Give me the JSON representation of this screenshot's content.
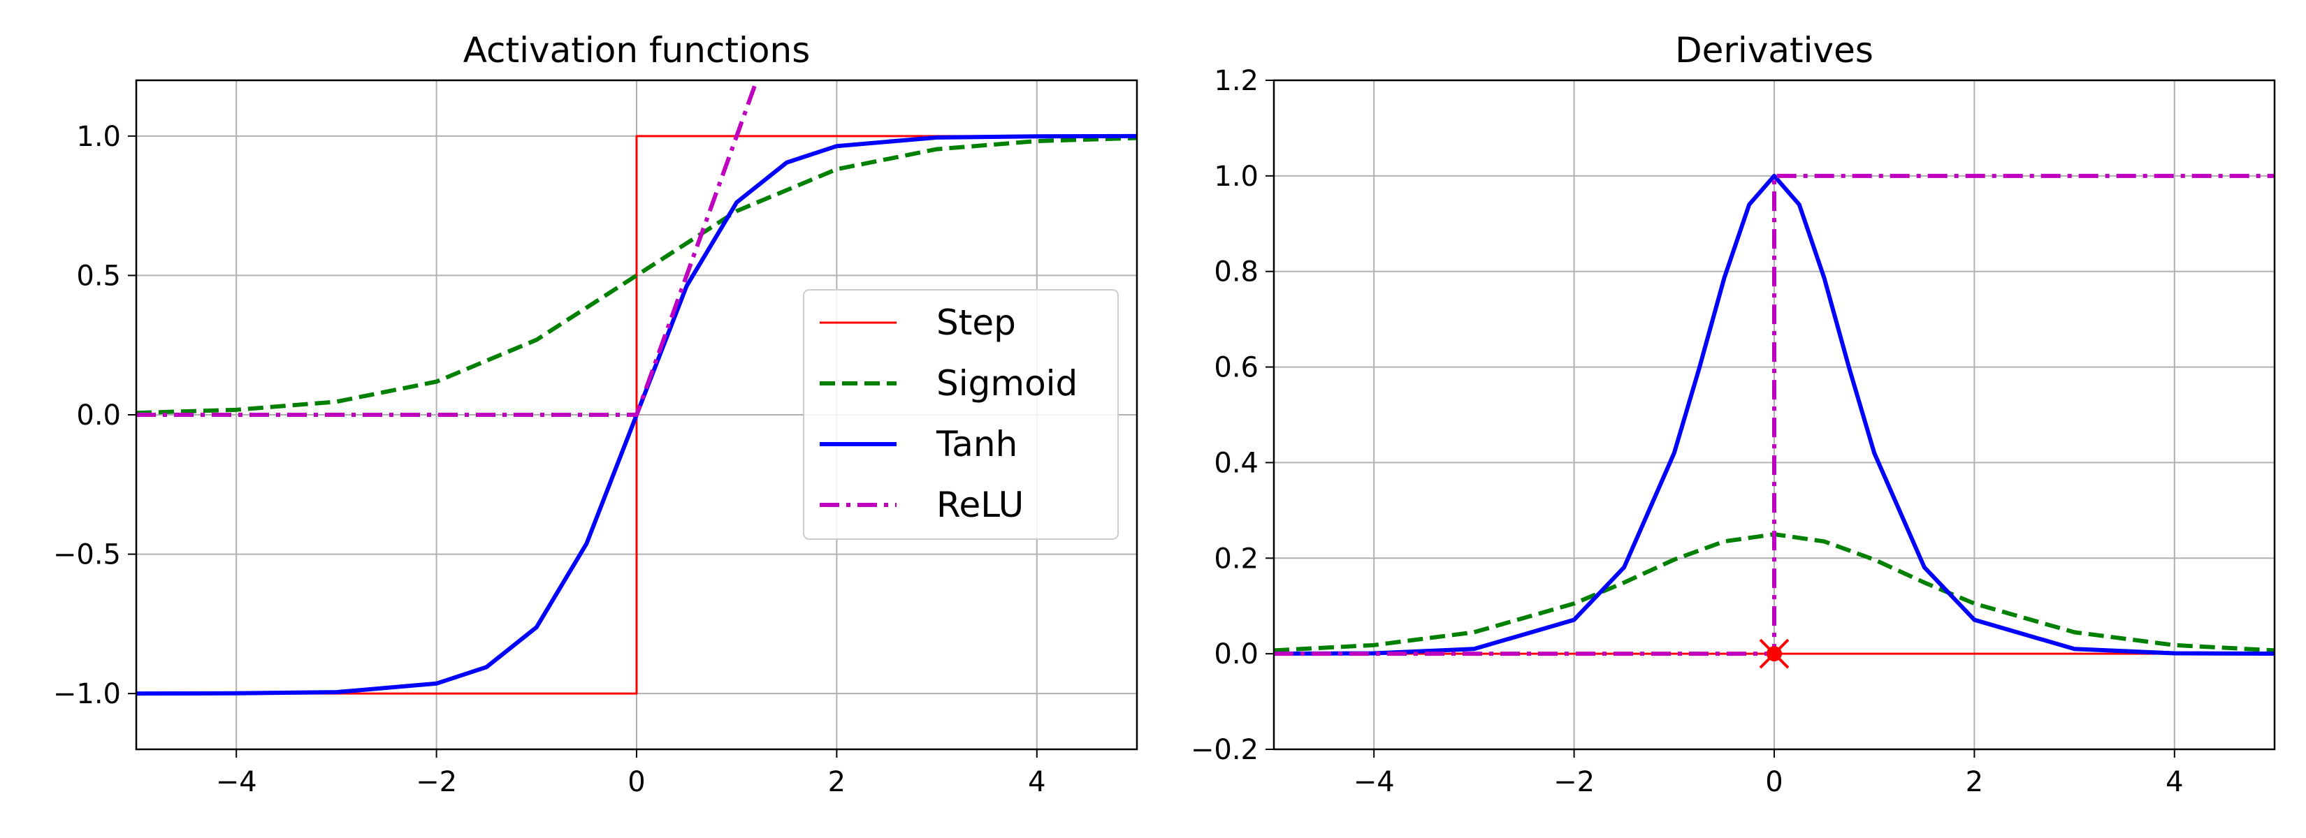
{
  "chart_data": [
    {
      "type": "line",
      "title": "Activation functions",
      "xlabel": "",
      "ylabel": "",
      "xlim": [
        -5,
        5
      ],
      "ylim": [
        -1.2,
        1.2
      ],
      "grid": true,
      "x_ticks": [
        -4,
        -2,
        0,
        2,
        4
      ],
      "x_tick_labels": [
        "−4",
        "−2",
        "0",
        "2",
        "4"
      ],
      "y_ticks": [
        -1.0,
        -0.5,
        0.0,
        0.5,
        1.0
      ],
      "y_tick_labels": [
        "−1.0",
        "−0.5",
        "0.0",
        "0.5",
        "1.0"
      ],
      "legend_position": "center-right",
      "series": [
        {
          "name": "Step",
          "color": "#ff0000",
          "style": "solid",
          "width": "thin",
          "x": [
            -5,
            0,
            0,
            5
          ],
          "y": [
            -1,
            -1,
            1,
            1
          ]
        },
        {
          "name": "Sigmoid",
          "color": "#008000",
          "style": "dashed",
          "width": "thick",
          "x": [
            -5,
            -4,
            -3,
            -2,
            -1,
            0,
            1,
            2,
            3,
            4,
            5
          ],
          "y": [
            0.007,
            0.018,
            0.047,
            0.119,
            0.269,
            0.5,
            0.731,
            0.881,
            0.953,
            0.982,
            0.993
          ]
        },
        {
          "name": "Tanh",
          "color": "#0000ff",
          "style": "solid",
          "width": "thick",
          "x": [
            -5,
            -4,
            -3,
            -2,
            -1.5,
            -1,
            -0.5,
            0,
            0.5,
            1,
            1.5,
            2,
            3,
            4,
            5
          ],
          "y": [
            -1.0,
            -0.999,
            -0.995,
            -0.964,
            -0.905,
            -0.762,
            -0.462,
            0,
            0.462,
            0.762,
            0.905,
            0.964,
            0.995,
            0.999,
            1.0
          ]
        },
        {
          "name": "ReLU",
          "color": "#bf00bf",
          "style": "dashdot",
          "width": "thick",
          "x": [
            -5,
            0,
            1.2
          ],
          "y": [
            0,
            0,
            1.2
          ]
        }
      ]
    },
    {
      "type": "line",
      "title": "Derivatives",
      "xlabel": "",
      "ylabel": "",
      "xlim": [
        -5,
        5
      ],
      "ylim": [
        -0.2,
        1.2
      ],
      "grid": true,
      "x_ticks": [
        -4,
        -2,
        0,
        2,
        4
      ],
      "x_tick_labels": [
        "−4",
        "−2",
        "0",
        "2",
        "4"
      ],
      "y_ticks": [
        -0.2,
        0.0,
        0.2,
        0.4,
        0.6,
        0.8,
        1.0,
        1.2
      ],
      "y_tick_labels": [
        "−0.2",
        "0.0",
        "0.2",
        "0.4",
        "0.6",
        "0.8",
        "1.0",
        "1.2"
      ],
      "series": [
        {
          "name": "Step",
          "color": "#ff0000",
          "style": "solid",
          "width": "thin",
          "x": [
            -5,
            5
          ],
          "y": [
            0,
            0
          ]
        },
        {
          "name": "Sigmoid",
          "color": "#008000",
          "style": "dashed",
          "width": "thick",
          "x": [
            -5,
            -4,
            -3,
            -2,
            -1.5,
            -1,
            -0.5,
            0,
            0.5,
            1,
            1.5,
            2,
            3,
            4,
            5
          ],
          "y": [
            0.007,
            0.018,
            0.045,
            0.105,
            0.149,
            0.197,
            0.235,
            0.25,
            0.235,
            0.197,
            0.149,
            0.105,
            0.045,
            0.018,
            0.007
          ]
        },
        {
          "name": "Tanh",
          "color": "#0000ff",
          "style": "solid",
          "width": "thick",
          "x": [
            -5,
            -4,
            -3,
            -2,
            -1.5,
            -1,
            -0.75,
            -0.5,
            -0.25,
            0,
            0.25,
            0.5,
            0.75,
            1,
            1.5,
            2,
            3,
            4,
            5
          ],
          "y": [
            0.0002,
            0.001,
            0.01,
            0.071,
            0.181,
            0.42,
            0.597,
            0.786,
            0.94,
            1.0,
            0.94,
            0.786,
            0.597,
            0.42,
            0.181,
            0.071,
            0.01,
            0.001,
            0.0002
          ]
        },
        {
          "name": "ReLU",
          "color": "#bf00bf",
          "style": "dashdot",
          "width": "thick",
          "x": [
            -5,
            0,
            0,
            5
          ],
          "y": [
            0,
            0,
            1,
            1
          ]
        }
      ],
      "markers": [
        {
          "x": 0,
          "y": 0,
          "color": "#ff0000",
          "shape": "x"
        },
        {
          "x": 0,
          "y": 0,
          "color": "#ff0000",
          "shape": "dot"
        }
      ]
    }
  ]
}
